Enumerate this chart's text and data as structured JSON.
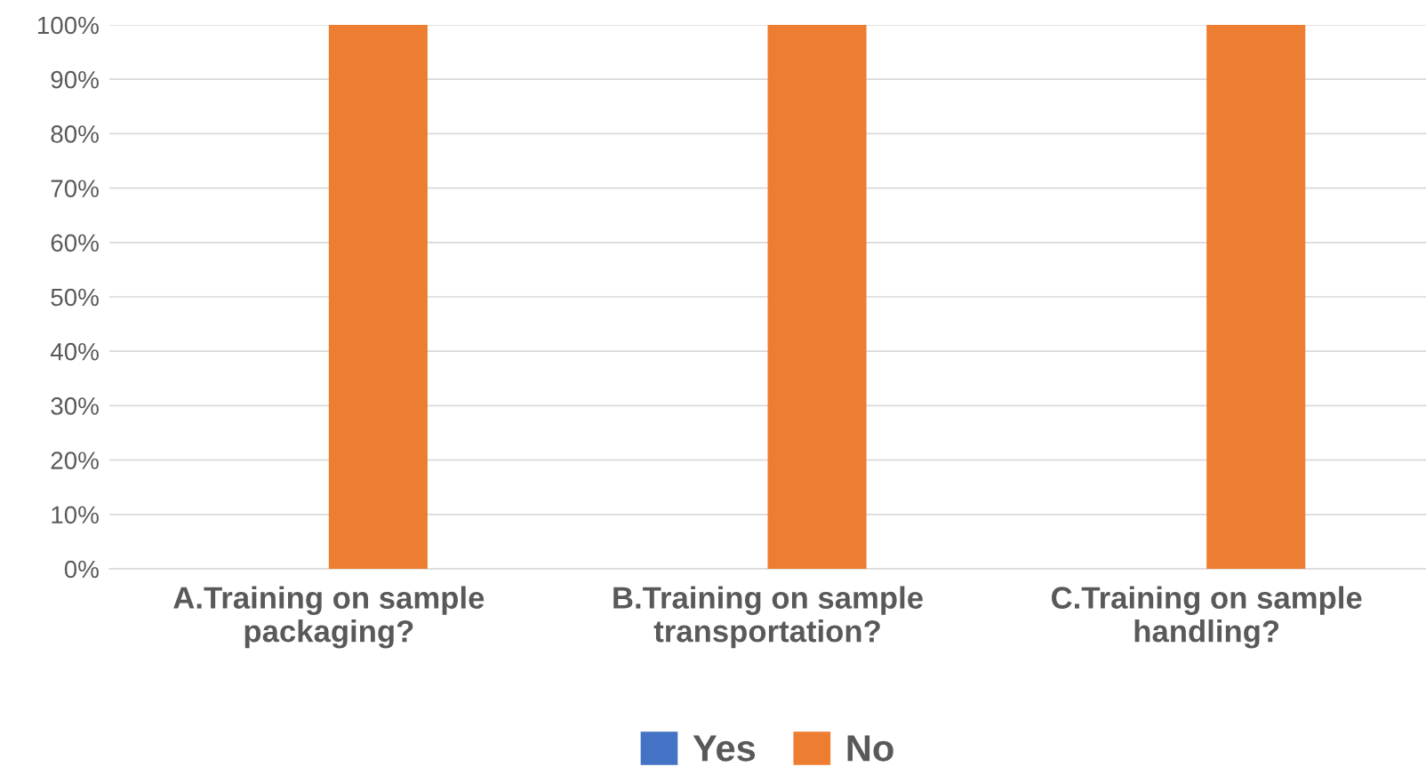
{
  "chart_data": {
    "type": "bar",
    "categories": [
      "A.Training on sample\npackaging?",
      "B.Training on sample\ntransportation?",
      "C.Training on sample\nhandling?"
    ],
    "series": [
      {
        "name": "Yes",
        "color": "#4472c4",
        "values": [
          0,
          0,
          0
        ]
      },
      {
        "name": "No",
        "color": "#ed7d31",
        "values": [
          100,
          100,
          100
        ]
      }
    ],
    "ylim": [
      0,
      100
    ],
    "yticks": [
      {
        "value": 0,
        "label": "0%"
      },
      {
        "value": 10,
        "label": "10%"
      },
      {
        "value": 20,
        "label": "20%"
      },
      {
        "value": 30,
        "label": "30%"
      },
      {
        "value": 40,
        "label": "40%"
      },
      {
        "value": 50,
        "label": "50%"
      },
      {
        "value": 60,
        "label": "60%"
      },
      {
        "value": 70,
        "label": "70%"
      },
      {
        "value": 80,
        "label": "80%"
      },
      {
        "value": 90,
        "label": "90%"
      },
      {
        "value": 100,
        "label": "100%"
      }
    ],
    "grid": "y",
    "legend": "bottom"
  }
}
